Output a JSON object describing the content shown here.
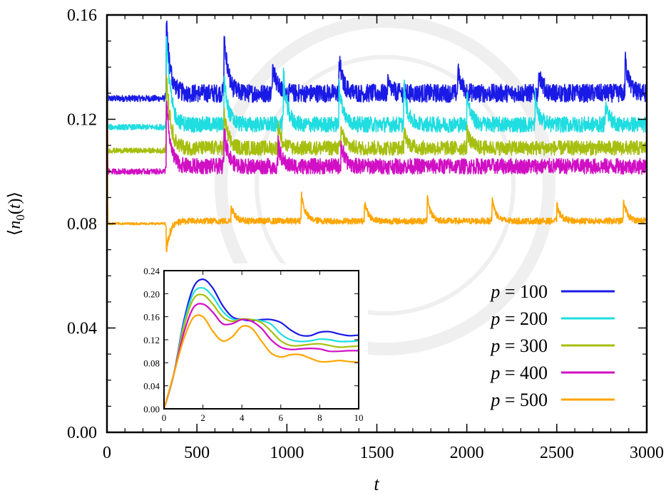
{
  "colors": {
    "p100": "#1a1ae6",
    "p200": "#1fdde0",
    "p300": "#a6bf0f",
    "p400": "#d10fc4",
    "p500": "#ffa500"
  },
  "chart_data": [
    {
      "type": "line",
      "xlabel": "t",
      "ylabel": "⟨n0(t)⟩",
      "xlim": [
        0,
        3000
      ],
      "ylim": [
        0,
        0.16
      ],
      "xticks": [
        "0",
        "500",
        "1000",
        "1500",
        "2000",
        "2500",
        "3000"
      ],
      "yticks": [
        "0.00",
        "0.04",
        "0.08",
        "0.12",
        "0.16"
      ],
      "legend_position": "bottom-right",
      "series": [
        {
          "name": "p = 100",
          "color": "#1a1ae6",
          "baseline": 0.128,
          "baseline_after": 0.13,
          "spikes": [
            [
              330,
              0.16
            ],
            [
              650,
              0.157
            ],
            [
              920,
              0.145
            ],
            [
              1290,
              0.145
            ],
            [
              1560,
              0.135
            ],
            [
              1950,
              0.14
            ],
            [
              2400,
              0.14
            ],
            [
              2880,
              0.145
            ]
          ]
        },
        {
          "name": "p = 200",
          "color": "#1fdde0",
          "baseline": 0.117,
          "baseline_after": 0.118,
          "spikes": [
            [
              330,
              0.16
            ],
            [
              650,
              0.14
            ],
            [
              980,
              0.14
            ],
            [
              1290,
              0.136
            ],
            [
              1650,
              0.135
            ],
            [
              2000,
              0.132
            ],
            [
              2380,
              0.13
            ],
            [
              2770,
              0.128
            ]
          ]
        },
        {
          "name": "p = 300",
          "color": "#a6bf0f",
          "baseline": 0.108,
          "baseline_after": 0.109,
          "spikes": [
            [
              330,
              0.143
            ],
            [
              650,
              0.125
            ],
            [
              950,
              0.12
            ],
            [
              1300,
              0.118
            ],
            [
              1650,
              0.117
            ],
            [
              2000,
              0.117
            ]
          ]
        },
        {
          "name": "p = 400",
          "color": "#d10fc4",
          "baseline": 0.1,
          "baseline_after": 0.102,
          "spikes": [
            [
              330,
              0.13
            ],
            [
              650,
              0.12
            ],
            [
              950,
              0.112
            ],
            [
              1300,
              0.112
            ]
          ]
        },
        {
          "name": "p = 500",
          "color": "#ffa500",
          "baseline": 0.08,
          "baseline_after": 0.081,
          "spikes": [
            [
              330,
              0.068
            ],
            [
              690,
              0.088
            ],
            [
              1080,
              0.093
            ],
            [
              1430,
              0.09
            ],
            [
              1780,
              0.091
            ],
            [
              2140,
              0.091
            ],
            [
              2500,
              0.088
            ],
            [
              2870,
              0.09
            ]
          ]
        }
      ]
    },
    {
      "type": "line",
      "role": "inset",
      "xlim": [
        0,
        10
      ],
      "ylim": [
        0,
        0.24
      ],
      "xticks": [
        "0",
        "2",
        "4",
        "6",
        "8",
        "10"
      ],
      "yticks": [
        "0.00",
        "0.04",
        "0.08",
        "0.12",
        "0.16",
        "0.20",
        "0.24"
      ],
      "series": [
        {
          "name": "p = 100",
          "color": "#1a1ae6",
          "x": [
            0,
            0.5,
            1,
            1.5,
            2,
            2.5,
            3,
            3.5,
            4,
            4.5,
            5,
            5.5,
            6,
            6.5,
            7,
            7.5,
            8,
            8.5,
            9,
            9.5,
            10
          ],
          "y": [
            0,
            0.06,
            0.15,
            0.21,
            0.225,
            0.21,
            0.18,
            0.16,
            0.155,
            0.153,
            0.155,
            0.155,
            0.15,
            0.137,
            0.128,
            0.127,
            0.133,
            0.134,
            0.13,
            0.127,
            0.128
          ]
        },
        {
          "name": "p = 200",
          "color": "#1fdde0",
          "x": [
            0,
            0.5,
            1,
            1.5,
            2,
            2.5,
            3,
            3.5,
            4,
            4.5,
            5,
            5.5,
            6,
            6.5,
            7,
            7.5,
            8,
            8.5,
            9,
            9.5,
            10
          ],
          "y": [
            0,
            0.06,
            0.145,
            0.2,
            0.21,
            0.195,
            0.17,
            0.156,
            0.155,
            0.155,
            0.153,
            0.147,
            0.13,
            0.12,
            0.117,
            0.118,
            0.121,
            0.12,
            0.117,
            0.117,
            0.118
          ]
        },
        {
          "name": "p = 300",
          "color": "#a6bf0f",
          "x": [
            0,
            0.5,
            1,
            1.5,
            2,
            2.5,
            3,
            3.5,
            4,
            4.5,
            5,
            5.5,
            6,
            6.5,
            7,
            7.5,
            8,
            8.5,
            9,
            9.5,
            10
          ],
          "y": [
            0,
            0.06,
            0.14,
            0.19,
            0.198,
            0.182,
            0.16,
            0.152,
            0.156,
            0.155,
            0.15,
            0.135,
            0.118,
            0.11,
            0.11,
            0.112,
            0.113,
            0.11,
            0.107,
            0.108,
            0.109
          ]
        },
        {
          "name": "p = 400",
          "color": "#d10fc4",
          "x": [
            0,
            0.5,
            1,
            1.5,
            2,
            2.5,
            3,
            3.5,
            4,
            4.5,
            5,
            5.5,
            6,
            6.5,
            7,
            7.5,
            8,
            8.5,
            9,
            9.5,
            10
          ],
          "y": [
            0,
            0.06,
            0.13,
            0.175,
            0.182,
            0.168,
            0.148,
            0.148,
            0.155,
            0.152,
            0.14,
            0.12,
            0.107,
            0.103,
            0.104,
            0.105,
            0.104,
            0.1,
            0.1,
            0.101,
            0.101
          ]
        },
        {
          "name": "p = 500",
          "color": "#ffa500",
          "x": [
            0,
            0.5,
            1,
            1.5,
            2,
            2.5,
            3,
            3.5,
            4,
            4.5,
            5,
            5.5,
            6,
            6.5,
            7,
            7.5,
            8,
            8.5,
            9,
            9.5,
            10
          ],
          "y": [
            0,
            0.06,
            0.12,
            0.158,
            0.16,
            0.135,
            0.118,
            0.125,
            0.143,
            0.14,
            0.118,
            0.097,
            0.09,
            0.094,
            0.094,
            0.088,
            0.082,
            0.082,
            0.084,
            0.082,
            0.081
          ]
        }
      ]
    }
  ]
}
